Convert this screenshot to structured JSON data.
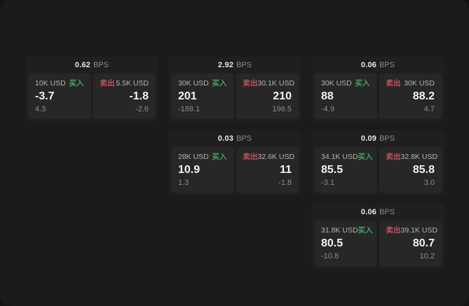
{
  "page": {
    "bps_unit": "BPS",
    "buy_label": "买入",
    "sell_label": "卖出"
  },
  "colors": {
    "backdrop": "#141414",
    "page_bg": "#1b1b1b",
    "card_bg": "#1f1f1f",
    "panel_bg": "#272727",
    "buy_green": "#3ea463",
    "sell_red": "#c14f63"
  },
  "cards": [
    {
      "bps": "0.62",
      "buy": {
        "amount": "10K USD",
        "value": "-3.7",
        "delta": "4.3"
      },
      "sell": {
        "amount": "5.5K USD",
        "value": "-1.8",
        "delta": "-2.6"
      }
    },
    {
      "bps": "2.92",
      "buy": {
        "amount": "30K USD",
        "value": "201",
        "delta": "-188.1"
      },
      "sell": {
        "amount": "30.1K USD",
        "value": "210",
        "delta": "196.5"
      }
    },
    {
      "bps": "0.06",
      "buy": {
        "amount": "30K USD",
        "value": "88",
        "delta": "-4.9"
      },
      "sell": {
        "amount": "30K USD",
        "value": "88.2",
        "delta": "4.7"
      }
    },
    {
      "bps": "0.03",
      "buy": {
        "amount": "28K USD",
        "value": "10.9",
        "delta": "1.3"
      },
      "sell": {
        "amount": "32.6K USD",
        "value": "11",
        "delta": "-1.8"
      }
    },
    {
      "bps": "0.09",
      "buy": {
        "amount": "34.1K USD",
        "value": "85.5",
        "delta": "-3.1"
      },
      "sell": {
        "amount": "32.8K USD",
        "value": "85.8",
        "delta": "3.0"
      }
    },
    {
      "bps": "0.06",
      "buy": {
        "amount": "31.8K USD",
        "value": "80.5",
        "delta": "-10.8"
      },
      "sell": {
        "amount": "39.1K USD",
        "value": "80.7",
        "delta": "10.2"
      }
    }
  ]
}
